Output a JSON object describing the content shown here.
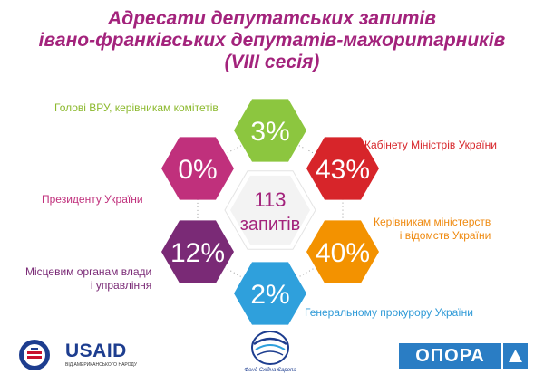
{
  "title": {
    "line1": "Адресати депутатських запитів",
    "line2": "івано-франківських депутатів-мажоритарників",
    "line3": "(VIII сесія)"
  },
  "center": {
    "count": "113",
    "label": "запитів"
  },
  "chart_data": {
    "type": "hexagon-infographic",
    "unit": "%",
    "total_requests": 113,
    "categories": [
      {
        "label": "Голові ВРУ, керівникам комітетів",
        "value": 3,
        "display": "3%",
        "color": "#8cc63f"
      },
      {
        "label": "Кабінету Міністрів України",
        "value": 43,
        "display": "43%",
        "color": "#d7252a"
      },
      {
        "label": "Керівникам міністерств і відомств України",
        "value": 40,
        "display": "40%",
        "color": "#f39200"
      },
      {
        "label": "Генеральному прокурору України",
        "value": 2,
        "display": "2%",
        "color": "#2fa0dc"
      },
      {
        "label": "Місцевим органам влади і управління",
        "value": 12,
        "display": "12%",
        "color": "#7a2a76"
      },
      {
        "label": "Президенту України",
        "value": 0,
        "display": "0%",
        "color": "#c0307c"
      }
    ]
  },
  "labels": {
    "vru": "Голові ВРУ, керівникам комітетів",
    "km": "Кабінету Міністрів України",
    "pres": "Президенту України",
    "min_line1": "Керівникам міністерств",
    "min_line2": "і відомств України",
    "loc_line1": "Місцевим органам влади",
    "loc_line2": "і управління",
    "gen": "Генеральному прокурору України"
  },
  "footer": {
    "usaid_name": "USAID",
    "usaid_sub": "ВІД АМЕРИКАНСЬКОГО НАРОДУ",
    "fund_name": "Фонд Східна Європа",
    "opora_name": "ОПОРА"
  }
}
